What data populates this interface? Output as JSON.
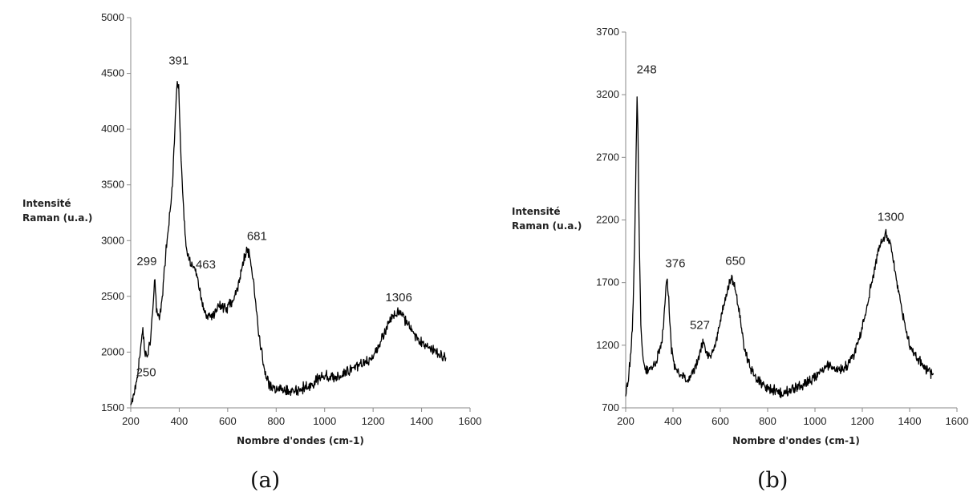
{
  "chart_data": [
    {
      "type": "line",
      "caption": "(a)",
      "xlabel": "Nombre d'ondes (cm-1)",
      "ylabel_line1": "Intensité",
      "ylabel_line2": "Raman  (u.a.)",
      "xlim": [
        200,
        1600
      ],
      "ylim": [
        1500,
        5000
      ],
      "xticks": [
        200,
        400,
        600,
        800,
        1000,
        1200,
        1400,
        1600
      ],
      "yticks": [
        1500,
        2000,
        2500,
        3000,
        3500,
        4000,
        4500,
        5000
      ],
      "x_range_plotted": [
        200,
        1500
      ],
      "peaks": [
        {
          "label": "250",
          "x": 250,
          "y": 2200
        },
        {
          "label": "299",
          "x": 299,
          "y": 2680
        },
        {
          "label": "391",
          "x": 391,
          "y": 4450
        },
        {
          "label": "463",
          "x": 463,
          "y": 2780
        },
        {
          "label": "681",
          "x": 681,
          "y": 2920
        },
        {
          "label": "1306",
          "x": 1306,
          "y": 2370
        }
      ],
      "keypoints": [
        [
          200,
          1550
        ],
        [
          215,
          1640
        ],
        [
          230,
          1800
        ],
        [
          240,
          2050
        ],
        [
          250,
          2200
        ],
        [
          258,
          2000
        ],
        [
          268,
          1950
        ],
        [
          280,
          2080
        ],
        [
          290,
          2350
        ],
        [
          299,
          2680
        ],
        [
          306,
          2400
        ],
        [
          318,
          2300
        ],
        [
          330,
          2500
        ],
        [
          345,
          2900
        ],
        [
          360,
          3200
        ],
        [
          372,
          3500
        ],
        [
          382,
          4000
        ],
        [
          391,
          4450
        ],
        [
          398,
          4350
        ],
        [
          408,
          3700
        ],
        [
          420,
          3200
        ],
        [
          432,
          2900
        ],
        [
          445,
          2800
        ],
        [
          455,
          2780
        ],
        [
          463,
          2780
        ],
        [
          475,
          2650
        ],
        [
          490,
          2480
        ],
        [
          505,
          2350
        ],
        [
          520,
          2320
        ],
        [
          540,
          2330
        ],
        [
          560,
          2420
        ],
        [
          580,
          2400
        ],
        [
          600,
          2400
        ],
        [
          620,
          2450
        ],
        [
          640,
          2580
        ],
        [
          660,
          2750
        ],
        [
          672,
          2880
        ],
        [
          681,
          2920
        ],
        [
          690,
          2850
        ],
        [
          705,
          2650
        ],
        [
          720,
          2350
        ],
        [
          735,
          2050
        ],
        [
          750,
          1850
        ],
        [
          770,
          1700
        ],
        [
          800,
          1670
        ],
        [
          830,
          1660
        ],
        [
          860,
          1650
        ],
        [
          900,
          1670
        ],
        [
          940,
          1700
        ],
        [
          970,
          1750
        ],
        [
          1000,
          1800
        ],
        [
          1030,
          1760
        ],
        [
          1060,
          1790
        ],
        [
          1100,
          1830
        ],
        [
          1140,
          1870
        ],
        [
          1180,
          1920
        ],
        [
          1210,
          2000
        ],
        [
          1240,
          2150
        ],
        [
          1270,
          2280
        ],
        [
          1290,
          2350
        ],
        [
          1306,
          2370
        ],
        [
          1320,
          2330
        ],
        [
          1350,
          2230
        ],
        [
          1380,
          2120
        ],
        [
          1420,
          2050
        ],
        [
          1460,
          2000
        ],
        [
          1500,
          1950
        ]
      ]
    },
    {
      "type": "line",
      "caption": "(b)",
      "xlabel": "Nombre d'ondes (cm-1)",
      "ylabel_line1": "Intensité",
      "ylabel_line2": "Raman  (u.a.)",
      "xlim": [
        200,
        1600
      ],
      "ylim": [
        700,
        3700
      ],
      "xticks": [
        200,
        400,
        600,
        800,
        1000,
        1200,
        1400,
        1600
      ],
      "yticks": [
        700,
        1200,
        1700,
        2200,
        2700,
        3200,
        3700
      ],
      "x_range_plotted": [
        200,
        1500
      ],
      "peaks": [
        {
          "label": "248",
          "x": 248,
          "y": 3180
        },
        {
          "label": "376",
          "x": 376,
          "y": 1720
        },
        {
          "label": "527",
          "x": 527,
          "y": 1240
        },
        {
          "label": "650",
          "x": 650,
          "y": 1740
        },
        {
          "label": "1300",
          "x": 1300,
          "y": 2090
        }
      ],
      "keypoints": [
        [
          200,
          820
        ],
        [
          210,
          900
        ],
        [
          220,
          1100
        ],
        [
          230,
          1400
        ],
        [
          238,
          2000
        ],
        [
          244,
          2700
        ],
        [
          248,
          3180
        ],
        [
          252,
          2900
        ],
        [
          258,
          2000
        ],
        [
          265,
          1300
        ],
        [
          275,
          1050
        ],
        [
          290,
          1000
        ],
        [
          310,
          1010
        ],
        [
          330,
          1080
        ],
        [
          350,
          1200
        ],
        [
          362,
          1400
        ],
        [
          370,
          1650
        ],
        [
          376,
          1720
        ],
        [
          382,
          1550
        ],
        [
          392,
          1200
        ],
        [
          405,
          1050
        ],
        [
          420,
          980
        ],
        [
          440,
          950
        ],
        [
          460,
          920
        ],
        [
          480,
          970
        ],
        [
          500,
          1050
        ],
        [
          515,
          1150
        ],
        [
          527,
          1240
        ],
        [
          540,
          1150
        ],
        [
          555,
          1100
        ],
        [
          570,
          1150
        ],
        [
          590,
          1300
        ],
        [
          610,
          1480
        ],
        [
          630,
          1650
        ],
        [
          650,
          1740
        ],
        [
          665,
          1640
        ],
        [
          680,
          1450
        ],
        [
          700,
          1200
        ],
        [
          720,
          1050
        ],
        [
          740,
          960
        ],
        [
          760,
          920
        ],
        [
          780,
          880
        ],
        [
          800,
          860
        ],
        [
          830,
          840
        ],
        [
          860,
          810
        ],
        [
          890,
          830
        ],
        [
          920,
          860
        ],
        [
          950,
          880
        ],
        [
          980,
          920
        ],
        [
          1010,
          960
        ],
        [
          1040,
          1000
        ],
        [
          1060,
          1050
        ],
        [
          1080,
          1010
        ],
        [
          1110,
          1000
        ],
        [
          1140,
          1050
        ],
        [
          1170,
          1150
        ],
        [
          1200,
          1350
        ],
        [
          1230,
          1600
        ],
        [
          1255,
          1850
        ],
        [
          1275,
          2000
        ],
        [
          1290,
          2060
        ],
        [
          1300,
          2090
        ],
        [
          1315,
          2040
        ],
        [
          1330,
          1900
        ],
        [
          1350,
          1650
        ],
        [
          1375,
          1400
        ],
        [
          1400,
          1200
        ],
        [
          1430,
          1100
        ],
        [
          1460,
          1030
        ],
        [
          1500,
          960
        ]
      ]
    }
  ]
}
